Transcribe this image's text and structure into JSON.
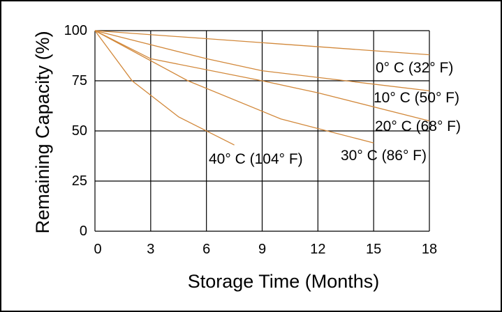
{
  "chart_data": {
    "type": "line",
    "title": "",
    "xlabel": "Storage Time (Months)",
    "ylabel": "Remaining Capacity (%)",
    "xlim": [
      0,
      18
    ],
    "ylim": [
      0,
      100
    ],
    "x_ticks": [
      0,
      3,
      6,
      9,
      12,
      15,
      18
    ],
    "y_ticks": [
      0,
      25,
      50,
      75,
      100
    ],
    "grid": true,
    "line_color": "#d2883a",
    "series": [
      {
        "name": "0° C (32° F)",
        "x": [
          0,
          18
        ],
        "y": [
          100,
          88
        ]
      },
      {
        "name": "10° C (50° F)",
        "x": [
          0,
          6,
          9,
          18
        ],
        "y": [
          100,
          86,
          80,
          70
        ]
      },
      {
        "name": "20° C (68° F)",
        "x": [
          0,
          3,
          9,
          12,
          18
        ],
        "y": [
          100,
          86,
          75,
          69,
          55
        ]
      },
      {
        "name": "30° C (86° F)",
        "x": [
          0,
          5,
          10,
          15
        ],
        "y": [
          100,
          75,
          56,
          44
        ]
      },
      {
        "name": "40° C (104° F)",
        "x": [
          0,
          2,
          4.5,
          7.5
        ],
        "y": [
          100,
          75,
          57,
          43
        ]
      }
    ]
  }
}
